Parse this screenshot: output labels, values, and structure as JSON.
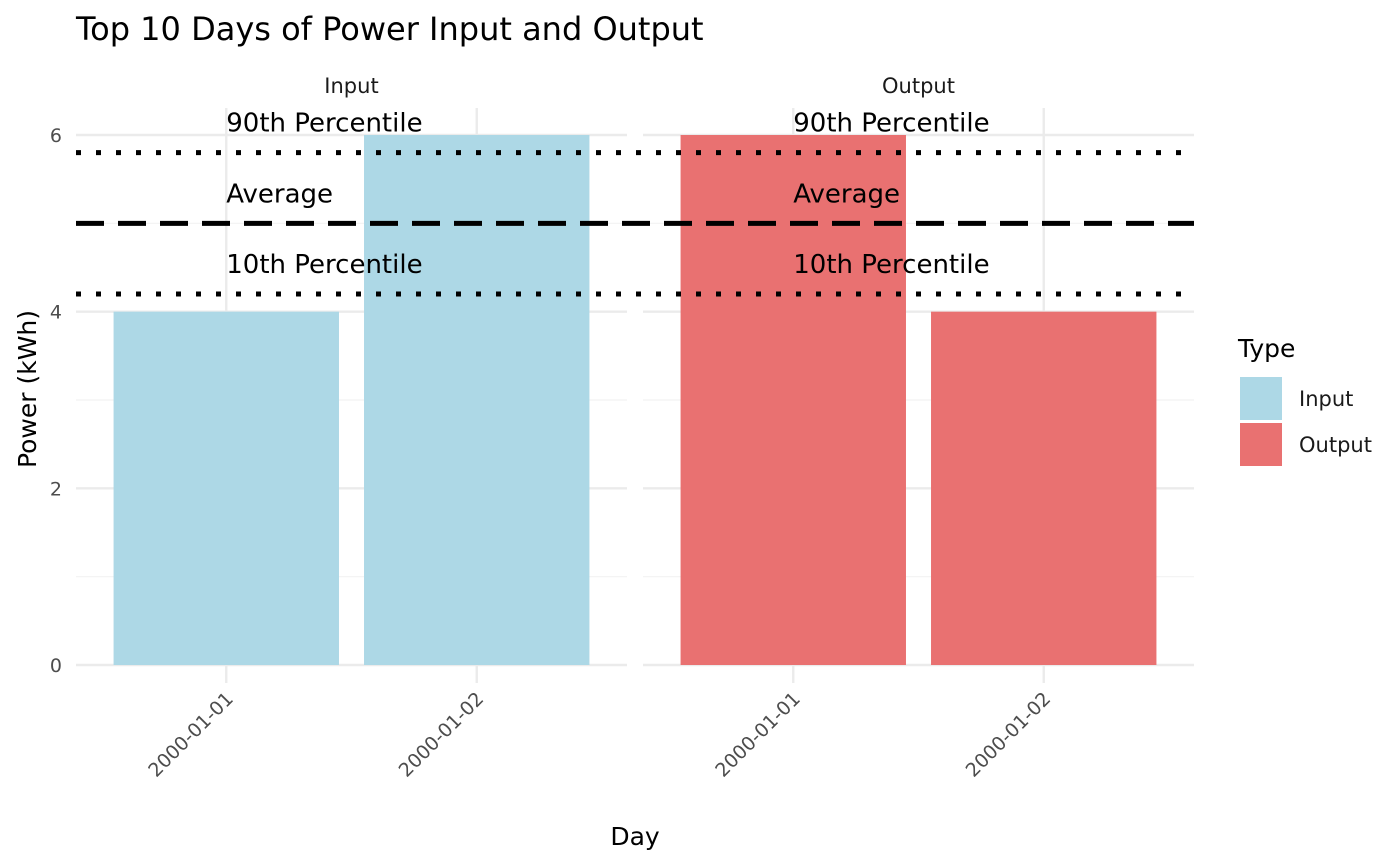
{
  "chart_data": {
    "type": "bar",
    "title": "Top 10 Days of Power Input and Output",
    "xlabel": "Day",
    "ylabel": "Power (kWh)",
    "ylim": [
      0,
      6
    ],
    "yticks": [
      0,
      2,
      4,
      6
    ],
    "grid": true,
    "categories": [
      "2000-01-01",
      "2000-01-02"
    ],
    "facets": [
      {
        "label": "Input",
        "values": [
          4,
          6
        ],
        "color": "#ADD8E6"
      },
      {
        "label": "Output",
        "values": [
          6,
          4
        ],
        "color": "#E97171"
      }
    ],
    "reference_lines": [
      {
        "label": "90th Percentile",
        "value": 5.8,
        "style": "dotted"
      },
      {
        "label": "Average",
        "value": 5.0,
        "style": "dashed"
      },
      {
        "label": "10th Percentile",
        "value": 4.2,
        "style": "dotted"
      }
    ],
    "legend": {
      "title": "Type",
      "position": "right",
      "items": [
        {
          "label": "Input",
          "color": "#ADD8E6"
        },
        {
          "label": "Output",
          "color": "#E97171"
        }
      ]
    }
  }
}
